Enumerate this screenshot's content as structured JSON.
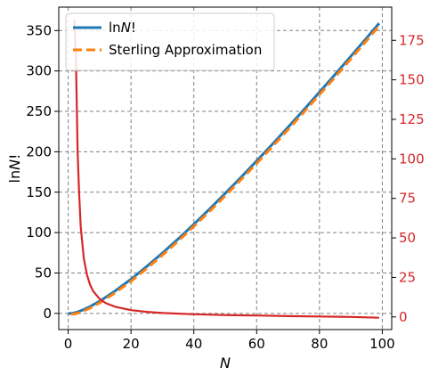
{
  "chart_data": {
    "type": "line",
    "xlabel": "N",
    "ylabel": "lnN!",
    "x_range": [
      -3,
      103
    ],
    "y_range": [
      -20,
      379
    ],
    "y2_range": [
      -8,
      196
    ],
    "x_ticks": [
      0,
      20,
      40,
      60,
      80,
      100
    ],
    "y_ticks": [
      0,
      50,
      100,
      150,
      200,
      250,
      300,
      350
    ],
    "y2_ticks": [
      0,
      25,
      50,
      75,
      100,
      125,
      150,
      175
    ],
    "grid": true,
    "legend_position": "top-left",
    "series": [
      {
        "name": "lnN!",
        "axis": "left",
        "color": "#1f77b4",
        "style": "solid",
        "x": [
          0,
          1,
          2,
          3,
          5,
          7,
          10,
          15,
          20,
          25,
          30,
          35,
          40,
          45,
          50,
          55,
          60,
          65,
          70,
          75,
          80,
          85,
          90,
          95,
          99
        ],
        "y": [
          0,
          0,
          0.69,
          1.79,
          4.79,
          8.53,
          15.1,
          27.9,
          42.3,
          58.0,
          74.7,
          92.1,
          110.3,
          129.1,
          148.5,
          168.3,
          188.6,
          209.3,
          230.4,
          251.8,
          273.7,
          295.8,
          318.2,
          340.8,
          359.1
        ]
      },
      {
        "name": "Sterling Approximation",
        "axis": "left",
        "color": "#ff7f0e",
        "style": "dashed",
        "x": [
          1,
          2,
          3,
          5,
          7,
          10,
          15,
          20,
          25,
          30,
          35,
          40,
          45,
          50,
          55,
          60,
          65,
          70,
          75,
          80,
          85,
          90,
          95,
          99
        ],
        "y": [
          -1,
          -0.61,
          0.3,
          3.05,
          6.62,
          13.0,
          25.6,
          39.9,
          55.5,
          72.0,
          89.4,
          107.6,
          126.3,
          145.6,
          165.4,
          185.7,
          206.3,
          227.4,
          248.8,
          270.6,
          292.6,
          315.0,
          337.6,
          356.0
        ]
      },
      {
        "name": "",
        "axis": "right",
        "color": "#d62728",
        "style": "solid",
        "x": [
          2,
          2.5,
          3,
          3.5,
          4,
          5,
          6,
          7,
          8,
          10,
          12,
          15,
          20,
          25,
          30,
          40,
          50,
          60,
          70,
          80,
          90,
          99
        ],
        "y": [
          188,
          160,
          104,
          78,
          56.8,
          36.8,
          26.4,
          20.2,
          16.2,
          11.4,
          8.7,
          6.4,
          4.3,
          3.2,
          2.5,
          1.7,
          1.2,
          0.9,
          0.5,
          0.3,
          0,
          -0.5
        ]
      }
    ]
  }
}
